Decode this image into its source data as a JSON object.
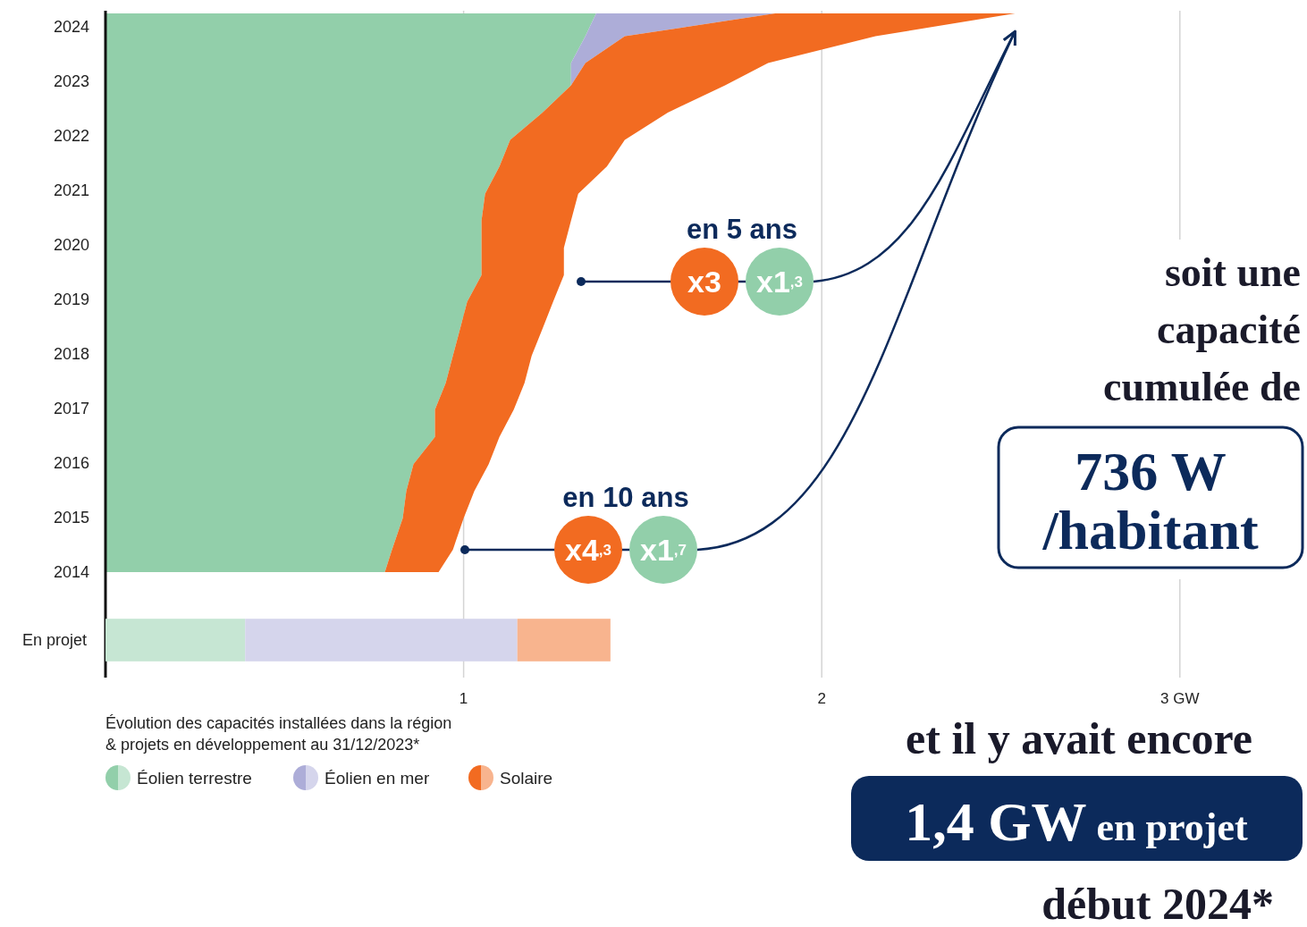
{
  "chart_data": [
    {
      "type": "area",
      "stacked": true,
      "orientation": "horizontal",
      "x": [
        2014,
        2014.41,
        2014.99,
        2015.49,
        2015.98,
        2016.48,
        2016.98,
        2017.47,
        2017.97,
        2018.46,
        2018.96,
        2019.45,
        2019.95,
        2020.45,
        2020.94,
        2021.44,
        2021.93,
        2022.43,
        2022.93,
        2023.34,
        2023.83,
        2024.25
      ],
      "series": [
        {
          "name": "Éolien terrestre",
          "color": "#92cfaa",
          "values": [
            0.78,
            0.8,
            0.83,
            0.84,
            0.86,
            0.92,
            0.92,
            0.95,
            0.97,
            0.99,
            1.01,
            1.05,
            1.05,
            1.05,
            1.06,
            1.1,
            1.13,
            1.22,
            1.3,
            1.3,
            1.34,
            1.37
          ]
        },
        {
          "name": "Éolien en mer",
          "color": "#adadd8",
          "values": [
            0,
            0,
            0,
            0,
            0,
            0,
            0,
            0,
            0,
            0,
            0,
            0,
            0,
            0,
            0,
            0,
            0,
            0,
            0,
            0.04,
            0.11,
            0.5
          ]
        },
        {
          "name": "Solaire",
          "color": "#f26b21",
          "values": [
            0.15,
            0.17,
            0.17,
            0.19,
            0.21,
            0.18,
            0.22,
            0.22,
            0.22,
            0.23,
            0.24,
            0.23,
            0.23,
            0.25,
            0.26,
            0.3,
            0.32,
            0.35,
            0.43,
            0.51,
            0.7,
            0.67
          ]
        }
      ],
      "xlim": [
        0,
        3.35
      ],
      "xticks": [
        1,
        2,
        3
      ],
      "ylim": [
        2014,
        2024.25
      ],
      "yticks": [
        2014,
        2015,
        2016,
        2017,
        2018,
        2019,
        2020,
        2021,
        2022,
        2023,
        2024
      ],
      "grid": "x",
      "tick_labels": "y",
      "legend": "bottom",
      "annotations": [
        "en 5 ans",
        "x3",
        "x1$^{,3}$",
        "en 10 ans",
        "x4$^{,3}$",
        "x1$^{,7}$",
        "soit une\ncapacité\ncumulée de",
        "736 W\n/habitant",
        "et il y avait encore",
        "1,4 GW en projet",
        "début 2024*",
        "Évolution des capacités installées dans la région\n& projets en développement au 31/12/2023*"
      ]
    },
    {
      "type": "bar",
      "stacked": true,
      "orientation": "horizontal",
      "categories": [
        "En projet"
      ],
      "series": [
        {
          "color": "#c6e6d3",
          "values": [
            0.39
          ]
        },
        {
          "color": "#d5d5ec",
          "values": [
            0.76
          ]
        },
        {
          "color": "#f8b48e",
          "values": [
            0.26
          ]
        }
      ],
      "xlim": [
        0,
        3.35
      ],
      "xticks": [
        1,
        2,
        {
          "value": 3,
          "label": "3 GW"
        }
      ],
      "grid": "x"
    }
  ]
}
